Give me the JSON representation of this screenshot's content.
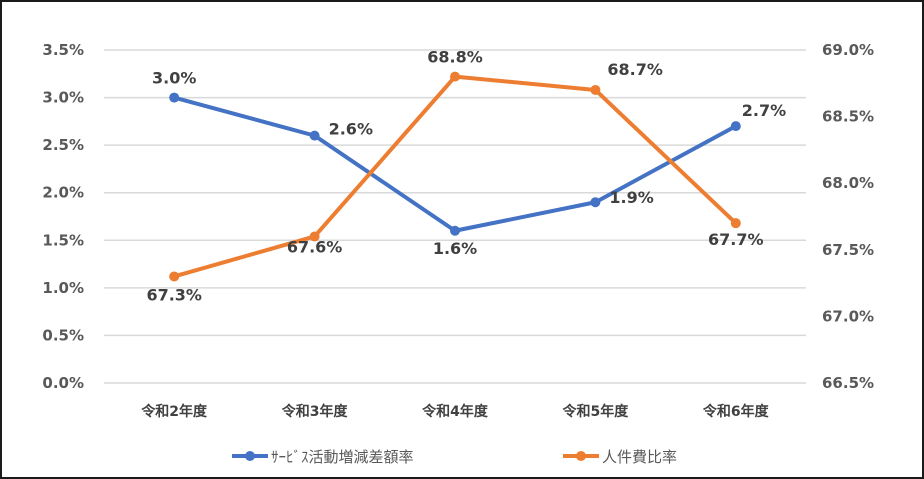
{
  "chart_data": {
    "type": "line",
    "title": "",
    "categories": [
      "令和2年度",
      "令和3年度",
      "令和4年度",
      "令和5年度",
      "令和6年度"
    ],
    "series": [
      {
        "name": "ｻｰﾋﾞｽ活動増減差額率",
        "axis": "left",
        "color": "#4472C4",
        "values": [
          3.0,
          2.6,
          1.6,
          1.9,
          2.7
        ],
        "labels": [
          "3.0%",
          "2.6%",
          "1.6%",
          "1.9%",
          "2.7%"
        ]
      },
      {
        "name": "人件費比率",
        "axis": "right",
        "color": "#ED7D31",
        "values": [
          67.3,
          67.6,
          68.8,
          68.7,
          67.7
        ],
        "labels": [
          "67.3%",
          "67.6%",
          "68.8%",
          "68.7%",
          "67.7%"
        ]
      }
    ],
    "y_left": {
      "ylim": [
        0.0,
        3.5
      ],
      "ticks": [
        "3.5%",
        "3.0%",
        "2.5%",
        "2.0%",
        "1.5%",
        "1.0%",
        "0.5%",
        "0.0%"
      ]
    },
    "y_right": {
      "ylim": [
        66.5,
        69.0
      ],
      "ticks": [
        "69.0%",
        "68.5%",
        "68.0%",
        "67.5%",
        "67.0%",
        "66.5%"
      ]
    },
    "xlabel": "",
    "ylabel": "",
    "grid": true,
    "legend_position": "bottom"
  },
  "legend": {
    "series1": "ｻｰﾋﾞｽ活動増減差額率",
    "series2": "人件費比率"
  }
}
